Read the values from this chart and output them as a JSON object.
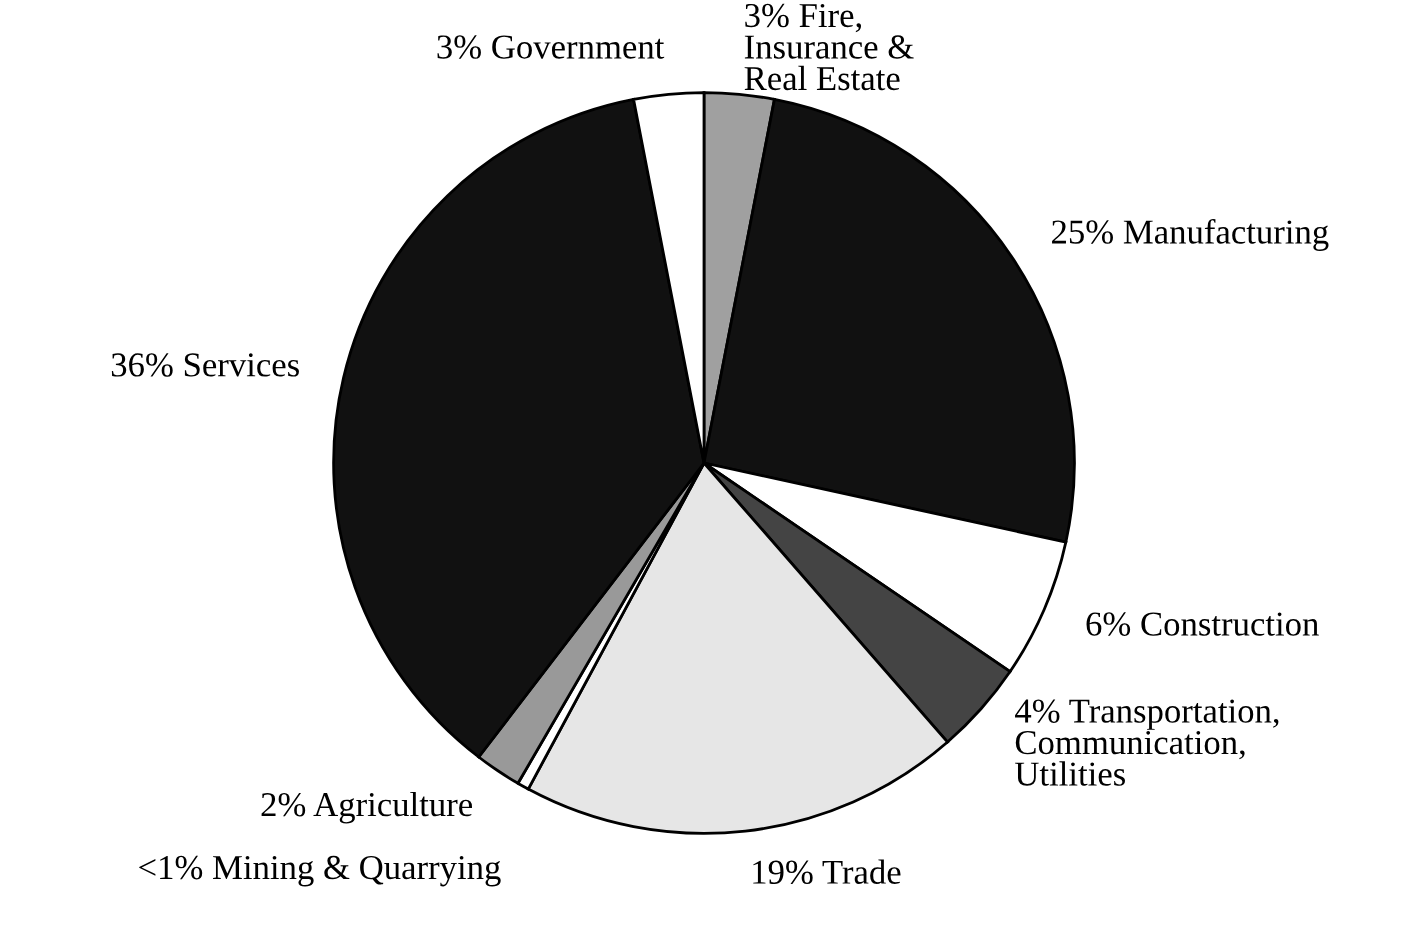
{
  "chart_data": {
    "type": "pie",
    "categories": [
      "Fire,\nInsurance &\nReal Estate",
      "Manufacturing",
      "Construction",
      "Transportation,\nCommunication,\nUtilities",
      "Trade",
      "Mining & Quarrying",
      "Agriculture",
      "Services",
      "Government"
    ],
    "values": [
      3,
      25,
      6,
      4,
      19,
      0.5,
      2,
      36,
      3
    ],
    "value_labels": [
      "3%",
      "25%",
      "6%",
      "4%",
      "19%",
      "<1%",
      "2%",
      "36%",
      "3%"
    ],
    "colors": [
      "#a0a0a0",
      "#111111",
      "#ffffff",
      "#444444",
      "#e6e6e6",
      "#ffffff",
      "#999999",
      "#111111",
      "#ffffff"
    ]
  }
}
